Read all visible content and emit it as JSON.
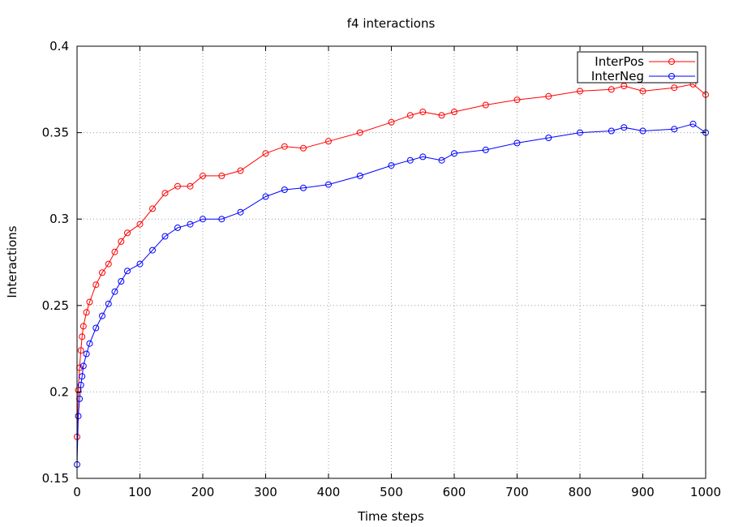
{
  "chart_data": {
    "type": "line",
    "title": "f4 interactions",
    "xlabel": "Time steps",
    "ylabel": "Interactions",
    "xlim": [
      0,
      1000
    ],
    "ylim": [
      0.15,
      0.4
    ],
    "xticks": [
      0,
      100,
      200,
      300,
      400,
      500,
      600,
      700,
      800,
      900,
      1000
    ],
    "yticks": [
      0.15,
      0.2,
      0.25,
      0.3,
      0.35,
      0.4
    ],
    "xtick_labels": [
      "0",
      "100",
      "200",
      "300",
      "400",
      "500",
      "600",
      "700",
      "800",
      "900",
      "1000"
    ],
    "ytick_labels": [
      "0.15",
      "0.2",
      "0.25",
      "0.3",
      "0.35",
      "0.4"
    ],
    "grid": true,
    "legend_position": "top-right",
    "markers": "open-circle",
    "series": [
      {
        "name": "InterPos",
        "color": "#ff0000",
        "x": [
          0,
          2,
          4,
          6,
          8,
          10,
          15,
          20,
          30,
          40,
          50,
          60,
          70,
          80,
          100,
          120,
          140,
          160,
          180,
          200,
          230,
          260,
          300,
          330,
          360,
          400,
          450,
          500,
          530,
          550,
          580,
          600,
          650,
          700,
          750,
          800,
          850,
          870,
          900,
          950,
          980,
          1000
        ],
        "y": [
          0.174,
          0.201,
          0.214,
          0.224,
          0.232,
          0.238,
          0.246,
          0.252,
          0.262,
          0.269,
          0.274,
          0.281,
          0.287,
          0.292,
          0.297,
          0.306,
          0.315,
          0.319,
          0.319,
          0.325,
          0.325,
          0.328,
          0.338,
          0.342,
          0.341,
          0.345,
          0.35,
          0.356,
          0.36,
          0.362,
          0.36,
          0.362,
          0.366,
          0.369,
          0.371,
          0.374,
          0.375,
          0.377,
          0.374,
          0.376,
          0.378,
          0.372
        ]
      },
      {
        "name": "InterNeg",
        "color": "#0000ff",
        "x": [
          0,
          2,
          4,
          6,
          8,
          10,
          15,
          20,
          30,
          40,
          50,
          60,
          70,
          80,
          100,
          120,
          140,
          160,
          180,
          200,
          230,
          260,
          300,
          330,
          360,
          400,
          450,
          500,
          530,
          550,
          580,
          600,
          650,
          700,
          750,
          800,
          850,
          870,
          900,
          950,
          980,
          1000
        ],
        "y": [
          0.158,
          0.186,
          0.196,
          0.204,
          0.209,
          0.215,
          0.222,
          0.228,
          0.237,
          0.244,
          0.251,
          0.258,
          0.264,
          0.27,
          0.274,
          0.282,
          0.29,
          0.295,
          0.297,
          0.3,
          0.3,
          0.304,
          0.313,
          0.317,
          0.318,
          0.32,
          0.325,
          0.331,
          0.334,
          0.336,
          0.334,
          0.338,
          0.34,
          0.344,
          0.347,
          0.35,
          0.351,
          0.353,
          0.351,
          0.352,
          0.355,
          0.35
        ]
      }
    ]
  }
}
